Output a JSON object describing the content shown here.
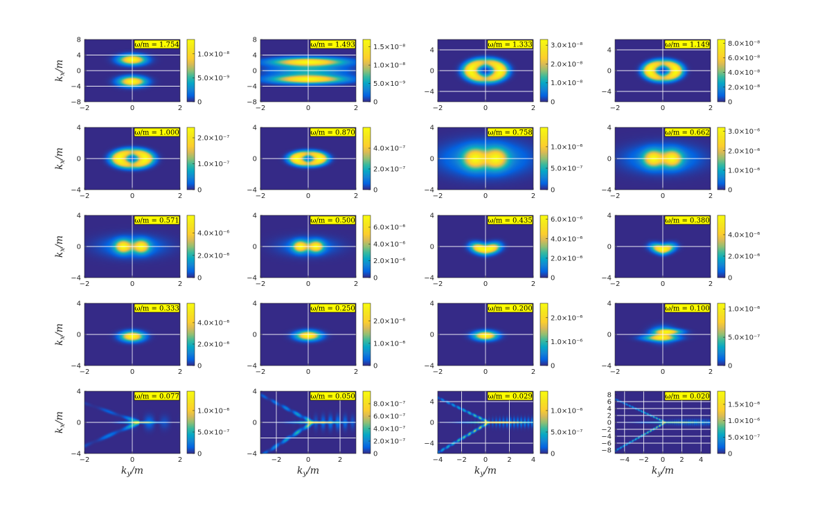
{
  "figure": {
    "xlabel": "k_y/m",
    "ylabel": "k_x/m"
  },
  "chart_data": [
    {
      "type": "heatmap",
      "annotation": "ω/m = 1.754",
      "xlim": [
        -2,
        2
      ],
      "ylim": [
        -8,
        8
      ],
      "xticks": [
        -2,
        0,
        2
      ],
      "yticks": [
        -8,
        -4,
        0,
        4,
        8
      ],
      "clim": [
        0,
        1.3e-08
      ],
      "cbar_ticks": [
        "0",
        "5.0×10⁻⁹",
        "1.0×10⁻⁸"
      ],
      "cbar_values": [
        0,
        5e-09,
        1e-08
      ],
      "hlines": [
        4,
        0,
        -4
      ],
      "vlines": [
        0
      ],
      "shape": "blobs",
      "params": {
        "dy": 2.8,
        "sx": 0.35,
        "sy": 0.8
      }
    },
    {
      "type": "heatmap",
      "annotation": "ω/m = 1.493",
      "xlim": [
        -2,
        2
      ],
      "ylim": [
        -8,
        8
      ],
      "xticks": [
        -2,
        0,
        2
      ],
      "yticks": [
        -8,
        -4,
        0,
        4,
        8
      ],
      "clim": [
        0,
        1.7e-08
      ],
      "cbar_ticks": [
        "0",
        "5.0×10⁻⁹",
        "1.0×10⁻⁸",
        "1.5×10⁻⁸"
      ],
      "cbar_values": [
        0,
        5e-09,
        1e-08,
        1.5e-08
      ],
      "hlines": [
        4,
        0,
        -4
      ],
      "vlines": [
        0
      ],
      "shape": "arcs",
      "params": {
        "r": 2.2,
        "sx": 0.95,
        "sy": 0.7
      }
    },
    {
      "type": "heatmap",
      "annotation": "ω/m = 1.333",
      "xlim": [
        -2,
        2
      ],
      "ylim": [
        -6,
        6
      ],
      "xticks": [
        -2,
        0,
        2
      ],
      "yticks": [
        -4,
        0,
        4
      ],
      "clim": [
        0,
        3.3e-08
      ],
      "cbar_ticks": [
        "0",
        "1.0×10⁻⁸",
        "2.0×10⁻⁸",
        "3.0×10⁻⁸"
      ],
      "cbar_values": [
        0,
        1e-08,
        2e-08,
        3e-08
      ],
      "hlines": [
        4,
        0,
        -4
      ],
      "vlines": [
        0
      ],
      "shape": "ring",
      "params": {
        "r": 0.62,
        "w": 0.22,
        "yscale": 2.6
      }
    },
    {
      "type": "heatmap",
      "annotation": "ω/m = 1.149",
      "xlim": [
        -2,
        2
      ],
      "ylim": [
        -6,
        6
      ],
      "xticks": [
        -2,
        0,
        2
      ],
      "yticks": [
        -4,
        0,
        4
      ],
      "clim": [
        0,
        8.5e-08
      ],
      "cbar_ticks": [
        "0",
        "2.0×10⁻⁸",
        "4.0×10⁻⁸",
        "6.0×10⁻⁸",
        "8.0×10⁻⁸"
      ],
      "cbar_values": [
        0,
        2e-08,
        4e-08,
        6e-08,
        8e-08
      ],
      "hlines": [
        4,
        0,
        -4
      ],
      "vlines": [
        0
      ],
      "shape": "ring",
      "params": {
        "r": 0.55,
        "w": 0.2,
        "yscale": 2.6
      }
    },
    {
      "type": "heatmap",
      "annotation": "ω/m = 1.000",
      "xlim": [
        -2,
        2
      ],
      "ylim": [
        -4,
        4
      ],
      "xticks": [
        -2,
        0,
        2
      ],
      "yticks": [
        -4,
        0,
        4
      ],
      "clim": [
        0,
        2.4e-07
      ],
      "cbar_ticks": [
        "0",
        "1.0×10⁻⁷",
        "2.0×10⁻⁷"
      ],
      "cbar_values": [
        0,
        1e-07,
        2e-07
      ],
      "hlines": [
        0
      ],
      "vlines": [
        0
      ],
      "shape": "ring",
      "params": {
        "r": 0.55,
        "w": 0.24,
        "yscale": 1.5
      }
    },
    {
      "type": "heatmap",
      "annotation": "ω/m = 0.870",
      "xlim": [
        -2,
        2
      ],
      "ylim": [
        -4,
        4
      ],
      "xticks": [
        -2,
        0,
        2
      ],
      "yticks": [
        -4,
        0,
        4
      ],
      "clim": [
        0,
        6e-07
      ],
      "cbar_ticks": [
        "0",
        "2.0×10⁻⁷",
        "4.0×10⁻⁷"
      ],
      "cbar_values": [
        0,
        2e-07,
        4e-07
      ],
      "hlines": [
        0
      ],
      "vlines": [
        0
      ],
      "shape": "ring",
      "params": {
        "r": 0.5,
        "w": 0.22,
        "yscale": 1.3
      }
    },
    {
      "type": "heatmap",
      "annotation": "ω/m = 0.758",
      "xlim": [
        -2,
        2
      ],
      "ylim": [
        -4,
        4
      ],
      "xticks": [
        -2,
        0,
        2
      ],
      "yticks": [
        -4,
        0,
        4
      ],
      "clim": [
        0,
        1.45e-06
      ],
      "cbar_ticks": [
        "0",
        "5.0×10⁻⁷",
        "1.0×10⁻⁶"
      ],
      "cbar_values": [
        0,
        5e-07,
        1e-06
      ],
      "hlines": [
        0
      ],
      "vlines": [
        0
      ],
      "shape": "twin",
      "params": {
        "dx": 0.45,
        "sx": 0.3,
        "sy": 0.85,
        "halo": 0.45
      }
    },
    {
      "type": "heatmap",
      "annotation": "ω/m = 0.662",
      "xlim": [
        -2,
        2
      ],
      "ylim": [
        -4,
        4
      ],
      "xticks": [
        -2,
        0,
        2
      ],
      "yticks": [
        -4,
        0,
        4
      ],
      "clim": [
        0,
        3.2e-06
      ],
      "cbar_ticks": [
        "0",
        "1.0×10⁻⁶",
        "2.0×10⁻⁶",
        "3.0×10⁻⁶"
      ],
      "cbar_values": [
        0,
        1e-06,
        2e-06,
        3e-06
      ],
      "hlines": [
        0
      ],
      "vlines": [
        0
      ],
      "shape": "twin",
      "params": {
        "dx": 0.4,
        "sx": 0.26,
        "sy": 0.7,
        "halo": 0.35
      }
    },
    {
      "type": "heatmap",
      "annotation": "ω/m = 0.571",
      "xlim": [
        -2,
        2
      ],
      "ylim": [
        -4,
        4
      ],
      "xticks": [
        -2,
        0,
        2
      ],
      "yticks": [
        -4,
        0,
        4
      ],
      "clim": [
        0,
        5.6e-06
      ],
      "cbar_ticks": [
        "0",
        "2.0×10⁻⁶",
        "4.0×10⁻⁶"
      ],
      "cbar_values": [
        0,
        2e-06,
        4e-06
      ],
      "hlines": [
        0
      ],
      "vlines": [
        0
      ],
      "shape": "twin",
      "params": {
        "dx": 0.38,
        "sx": 0.22,
        "sy": 0.55,
        "halo": 0.25
      }
    },
    {
      "type": "heatmap",
      "annotation": "ω/m = 0.500",
      "xlim": [
        -2,
        2
      ],
      "ylim": [
        -4,
        4
      ],
      "xticks": [
        -2,
        0,
        2
      ],
      "yticks": [
        -4,
        0,
        4
      ],
      "clim": [
        0,
        7.4e-06
      ],
      "cbar_ticks": [
        "0",
        "2.0×10⁻⁶",
        "4.0×10⁻⁶",
        "6.0×10⁻⁶"
      ],
      "cbar_values": [
        0,
        2e-06,
        4e-06,
        6e-06
      ],
      "hlines": [
        0
      ],
      "vlines": [
        0
      ],
      "shape": "twin",
      "params": {
        "dx": 0.33,
        "sx": 0.2,
        "sy": 0.48,
        "halo": 0.2
      }
    },
    {
      "type": "heatmap",
      "annotation": "ω/m = 0.435",
      "xlim": [
        -2,
        2
      ],
      "ylim": [
        -4,
        4
      ],
      "xticks": [
        -2,
        0,
        2
      ],
      "yticks": [
        -4,
        0,
        4
      ],
      "clim": [
        0,
        6.4e-06
      ],
      "cbar_ticks": [
        "0",
        "2.0×10⁻⁶",
        "4.0×10⁻⁶",
        "6.0×10⁻⁶"
      ],
      "cbar_values": [
        0,
        2e-06,
        4e-06,
        6e-06
      ],
      "hlines": [
        0
      ],
      "vlines": [
        0
      ],
      "shape": "vshape",
      "params": {
        "dx": 0.3,
        "sx": 0.22,
        "sy": 0.42,
        "dip": 0.35
      }
    },
    {
      "type": "heatmap",
      "annotation": "ω/m = 0.380",
      "xlim": [
        -2,
        2
      ],
      "ylim": [
        -4,
        4
      ],
      "xticks": [
        -2,
        0,
        2
      ],
      "yticks": [
        -4,
        0,
        4
      ],
      "clim": [
        0,
        5.8e-06
      ],
      "cbar_ticks": [
        "0",
        "2.0×10⁻⁶",
        "4.0×10⁻⁶"
      ],
      "cbar_values": [
        0,
        2e-06,
        4e-06
      ],
      "hlines": [
        0
      ],
      "vlines": [
        0
      ],
      "shape": "vshape",
      "params": {
        "dx": 0.2,
        "sx": 0.22,
        "sy": 0.38,
        "dip": 0.35
      }
    },
    {
      "type": "heatmap",
      "annotation": "ω/m = 0.333",
      "xlim": [
        -2,
        2
      ],
      "ylim": [
        -4,
        4
      ],
      "xticks": [
        -2,
        0,
        2
      ],
      "yticks": [
        -4,
        0,
        4
      ],
      "clim": [
        0,
        5.8e-06
      ],
      "cbar_ticks": [
        "0",
        "2.0×10⁻⁶",
        "4.0×10⁻⁶"
      ],
      "cbar_values": [
        0,
        2e-06,
        4e-06
      ],
      "hlines": [
        0
      ],
      "vlines": [
        0
      ],
      "shape": "blob",
      "params": {
        "cy": -0.25,
        "sx": 0.3,
        "sy": 0.4
      }
    },
    {
      "type": "heatmap",
      "annotation": "ω/m = 0.250",
      "xlim": [
        -2,
        2
      ],
      "ylim": [
        -4,
        4
      ],
      "xticks": [
        -2,
        0,
        2
      ],
      "yticks": [
        -4,
        0,
        4
      ],
      "clim": [
        0,
        2.8e-06
      ],
      "cbar_ticks": [
        "0",
        "1.0×10⁻⁶",
        "2.0×10⁻⁶"
      ],
      "cbar_values": [
        0,
        1e-06,
        2e-06
      ],
      "hlines": [
        0
      ],
      "vlines": [
        0
      ],
      "shape": "blob",
      "params": {
        "cy": -0.15,
        "sx": 0.32,
        "sy": 0.38
      }
    },
    {
      "type": "heatmap",
      "annotation": "ω/m = 0.200",
      "xlim": [
        -2,
        2
      ],
      "ylim": [
        -4,
        4
      ],
      "xticks": [
        -2,
        0,
        2
      ],
      "yticks": [
        -4,
        0,
        4
      ],
      "clim": [
        0,
        2.6e-06
      ],
      "cbar_ticks": [
        "0",
        "1.0×10⁻⁶",
        "2.0×10⁻⁶"
      ],
      "cbar_values": [
        0,
        1e-06,
        2e-06
      ],
      "hlines": [
        0
      ],
      "vlines": [
        0
      ],
      "shape": "blob",
      "params": {
        "cy": -0.15,
        "sx": 0.3,
        "sy": 0.36
      }
    },
    {
      "type": "heatmap",
      "annotation": "ω/m = 0.100",
      "xlim": [
        -2,
        2
      ],
      "ylim": [
        -4,
        4
      ],
      "xticks": [
        -2,
        0,
        2
      ],
      "yticks": [
        -4,
        0,
        4
      ],
      "clim": [
        0,
        1.1e-06
      ],
      "cbar_ticks": [
        "0",
        "5.0×10⁻⁷",
        "1.0×10⁻⁶"
      ],
      "cbar_values": [
        0,
        5e-07,
        1e-06
      ],
      "hlines": [
        0
      ],
      "vlines": [
        0
      ],
      "shape": "wedge",
      "params": {
        "cy": -0.2,
        "sx": 0.4,
        "sy": 0.5
      }
    },
    {
      "type": "heatmap",
      "annotation": "ω/m = 0.077",
      "xlim": [
        -2,
        2
      ],
      "ylim": [
        -4,
        4
      ],
      "xticks": [
        -2,
        0,
        2
      ],
      "yticks": [
        -4,
        0,
        4
      ],
      "clim": [
        0,
        1.45e-06
      ],
      "cbar_ticks": [
        "0",
        "5.0×10⁻⁷",
        "1.0×10⁻⁶"
      ],
      "cbar_values": [
        0,
        5e-07,
        1e-06
      ],
      "hlines": [
        0
      ],
      "vlines": [
        0
      ],
      "shape": "fan",
      "params": {
        "spread": 1.2,
        "len": 1.0,
        "fringe": 6
      }
    },
    {
      "type": "heatmap",
      "annotation": "ω/m = 0.050",
      "xlim": [
        -3,
        3
      ],
      "ylim": [
        -4,
        4
      ],
      "xticks": [
        -2,
        0,
        2
      ],
      "yticks": [
        -4,
        0,
        4
      ],
      "clim": [
        0,
        1e-06
      ],
      "cbar_ticks": [
        "0",
        "2.0×10⁻⁷",
        "4.0×10⁻⁷",
        "6.0×10⁻⁷",
        "8.0×10⁻⁷"
      ],
      "cbar_values": [
        0,
        2e-07,
        4e-07,
        6e-07,
        8e-07
      ],
      "hlines": [
        0,
        -2
      ],
      "vlines": [
        -2,
        0,
        2
      ],
      "shape": "fan",
      "params": {
        "spread": 2.4,
        "len": 2.0,
        "fringe": 9
      }
    },
    {
      "type": "heatmap",
      "annotation": "ω/m = 0.029",
      "xlim": [
        -4,
        4
      ],
      "ylim": [
        -6,
        6
      ],
      "xticks": [
        -4,
        -2,
        0,
        2,
        4
      ],
      "yticks": [
        -4,
        0,
        4
      ],
      "clim": [
        0,
        1.45e-06
      ],
      "cbar_ticks": [
        "0",
        "5.0×10⁻⁷",
        "1.0×10⁻⁶"
      ],
      "cbar_values": [
        0,
        5e-07,
        1e-06
      ],
      "hlines": [
        4,
        0,
        -4
      ],
      "vlines": [
        -2,
        0,
        2
      ],
      "shape": "fan",
      "params": {
        "spread": 4.2,
        "len": 3.4,
        "fringe": 14
      }
    },
    {
      "type": "heatmap",
      "annotation": "ω/m = 0.020",
      "xlim": [
        -5,
        5
      ],
      "ylim": [
        -9,
        9
      ],
      "xticks": [
        -4,
        -2,
        0,
        2,
        4
      ],
      "yticks": [
        -8,
        -6,
        -4,
        -2,
        0,
        2,
        4,
        6,
        8
      ],
      "clim": [
        0,
        1.9e-06
      ],
      "cbar_ticks": [
        "0",
        "5.0×10⁻⁷",
        "1.0×10⁻⁶",
        "1.5×10⁻⁶"
      ],
      "cbar_values": [
        0,
        5e-07,
        1e-06,
        1.5e-06
      ],
      "hlines": [
        6,
        4,
        2,
        0,
        -2,
        -4,
        -6
      ],
      "vlines": [
        -4,
        -2,
        0,
        2,
        4
      ],
      "shape": "fan",
      "params": {
        "spread": 6.5,
        "len": 4.6,
        "fringe": 20
      }
    }
  ]
}
